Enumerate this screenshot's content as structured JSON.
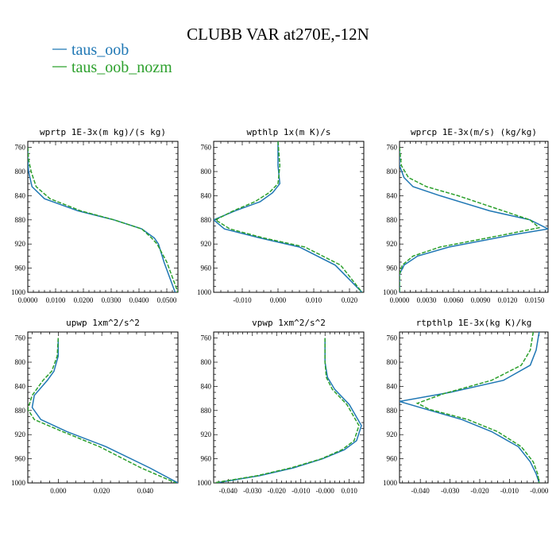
{
  "figure": {
    "title": "CLUBB VAR at270E,-12N",
    "legend": [
      {
        "label": "taus_oob",
        "color": "#1f77b4"
      },
      {
        "label": "taus_oob_nozm",
        "color": "#2ca02c"
      }
    ]
  },
  "chart_data": [
    {
      "type": "line",
      "title": "wprtp  1E-3x(m kg)/(s kg)",
      "xlim": [
        0.0,
        0.054
      ],
      "ylim": [
        1000,
        750
      ],
      "xticks": [
        0.0,
        0.01,
        0.02,
        0.03,
        0.04,
        0.05
      ],
      "xtick_labels": [
        "0.0000",
        "0.0100",
        "0.0200",
        "0.0300",
        "0.0400",
        "0.0500"
      ],
      "yticks": [
        760,
        800,
        840,
        880,
        920,
        960,
        1000
      ],
      "ytick_labels": [
        "760",
        "800",
        "840",
        "880",
        "920",
        "960",
        "1000"
      ],
      "series": [
        {
          "name": "taus_oob",
          "color": "#1f77b4",
          "dash": "solid",
          "x": [
            0.0,
            0.0,
            0.0003,
            0.0015,
            0.006,
            0.018,
            0.031,
            0.041,
            0.0455,
            0.047,
            0.049,
            0.053
          ],
          "y": [
            760,
            780,
            800,
            825,
            845,
            865,
            880,
            895,
            910,
            920,
            950,
            1000
          ]
        },
        {
          "name": "taus_oob_nozm",
          "color": "#2ca02c",
          "dash": "dashed",
          "x": [
            0.0,
            0.0003,
            0.0012,
            0.003,
            0.008,
            0.019,
            0.031,
            0.041,
            0.0445,
            0.0465,
            0.05,
            0.054
          ],
          "y": [
            760,
            780,
            800,
            825,
            845,
            865,
            880,
            895,
            910,
            920,
            950,
            1000
          ]
        }
      ]
    },
    {
      "type": "line",
      "title": "wpthlp  1x(m K)/s",
      "xlim": [
        -0.018,
        0.024
      ],
      "ylim": [
        1000,
        750
      ],
      "xticks": [
        -0.01,
        0.0,
        0.01,
        0.02
      ],
      "xtick_labels": [
        "-0.010",
        "0.000",
        "0.010",
        "0.020"
      ],
      "yticks": [
        760,
        800,
        840,
        880,
        920,
        960,
        1000
      ],
      "ytick_labels": [
        "760",
        "800",
        "840",
        "880",
        "920",
        "960",
        "1000"
      ],
      "series": [
        {
          "name": "taus_oob",
          "color": "#1f77b4",
          "dash": "solid",
          "x": [
            0.0,
            0.0,
            0.0005,
            -0.0015,
            -0.005,
            -0.012,
            -0.018,
            -0.015,
            -0.005,
            0.006,
            0.016,
            0.0235
          ],
          "y": [
            750,
            790,
            820,
            835,
            850,
            865,
            880,
            895,
            910,
            925,
            955,
            1000
          ]
        },
        {
          "name": "taus_oob_nozm",
          "color": "#2ca02c",
          "dash": "dashed",
          "x": [
            0.0,
            0.0005,
            0.0,
            -0.0025,
            -0.0065,
            -0.0125,
            -0.0175,
            -0.0135,
            -0.004,
            0.0075,
            0.0175,
            0.0235
          ],
          "y": [
            750,
            790,
            820,
            835,
            850,
            865,
            880,
            895,
            910,
            925,
            955,
            1000
          ]
        }
      ]
    },
    {
      "type": "line",
      "title": "wprcp  1E-3x(m/s) (kg/kg)",
      "xlim": [
        0.0,
        0.0165
      ],
      "ylim": [
        1000,
        750
      ],
      "xticks": [
        0.0,
        0.003,
        0.006,
        0.009,
        0.012,
        0.015
      ],
      "xtick_labels": [
        "0.0000",
        "0.0030",
        "0.0060",
        "0.0090",
        "0.0120",
        "0.0150"
      ],
      "yticks": [
        760,
        800,
        840,
        880,
        920,
        960,
        1000
      ],
      "ytick_labels": [
        "760",
        "800",
        "840",
        "880",
        "920",
        "960",
        "1000"
      ],
      "series": [
        {
          "name": "taus_oob",
          "color": "#1f77b4",
          "dash": "solid",
          "x": [
            0.0,
            0.0,
            0.0005,
            0.0015,
            0.0045,
            0.01,
            0.0145,
            0.0165,
            0.0125,
            0.0055,
            0.002,
            0.0005,
            0.0,
            0.0
          ],
          "y": [
            760,
            790,
            810,
            825,
            840,
            865,
            880,
            895,
            905,
            925,
            940,
            955,
            970,
            1000
          ]
        },
        {
          "name": "taus_oob_nozm",
          "color": "#2ca02c",
          "dash": "dashed",
          "x": [
            0.0,
            0.0002,
            0.001,
            0.003,
            0.0065,
            0.0115,
            0.0145,
            0.0155,
            0.0115,
            0.0045,
            0.0015,
            0.0003,
            0.0,
            0.0
          ],
          "y": [
            760,
            790,
            810,
            825,
            840,
            865,
            880,
            893,
            905,
            925,
            940,
            955,
            970,
            1000
          ]
        }
      ]
    },
    {
      "type": "line",
      "title": "upwp  1xm^2/s^2",
      "xlim": [
        -0.014,
        0.055
      ],
      "ylim": [
        1000,
        750
      ],
      "xticks": [
        0.0,
        0.02,
        0.04
      ],
      "xtick_labels": [
        "0.000",
        "0.020",
        "0.040"
      ],
      "yticks": [
        760,
        800,
        840,
        880,
        920,
        960,
        1000
      ],
      "ytick_labels": [
        "760",
        "800",
        "840",
        "880",
        "920",
        "960",
        "1000"
      ],
      "series": [
        {
          "name": "taus_oob",
          "color": "#1f77b4",
          "dash": "solid",
          "x": [
            0.0,
            0.0,
            -0.002,
            -0.005,
            -0.011,
            -0.012,
            -0.008,
            0.004,
            0.022,
            0.042,
            0.055
          ],
          "y": [
            760,
            790,
            815,
            830,
            855,
            875,
            895,
            915,
            940,
            975,
            1000
          ]
        },
        {
          "name": "taus_oob_nozm",
          "color": "#2ca02c",
          "dash": "dashed",
          "x": [
            0.0,
            -0.0005,
            -0.003,
            -0.007,
            -0.012,
            -0.014,
            -0.011,
            0.002,
            0.019,
            0.038,
            0.054
          ],
          "y": [
            760,
            790,
            815,
            830,
            855,
            878,
            895,
            915,
            940,
            975,
            1000
          ]
        }
      ]
    },
    {
      "type": "line",
      "title": "vpwp  1xm^2/s^2",
      "xlim": [
        -0.046,
        0.016
      ],
      "ylim": [
        1000,
        750
      ],
      "xticks": [
        -0.04,
        -0.03,
        -0.02,
        -0.01,
        0.0,
        0.01
      ],
      "xtick_labels": [
        "-0.040",
        "-0.030",
        "-0.020",
        "-0.010",
        "-0.000",
        "0.010"
      ],
      "yticks": [
        760,
        800,
        840,
        880,
        920,
        960,
        1000
      ],
      "ytick_labels": [
        "760",
        "800",
        "840",
        "880",
        "920",
        "960",
        "1000"
      ],
      "series": [
        {
          "name": "taus_oob",
          "color": "#1f77b4",
          "dash": "solid",
          "x": [
            0.0,
            0.0,
            0.001,
            0.004,
            0.01,
            0.015,
            0.013,
            0.008,
            -0.001,
            -0.013,
            -0.027,
            -0.045
          ],
          "y": [
            760,
            800,
            825,
            845,
            870,
            905,
            930,
            945,
            960,
            975,
            988,
            1000
          ]
        },
        {
          "name": "taus_oob_nozm",
          "color": "#2ca02c",
          "dash": "dashed",
          "x": [
            0.0,
            0.0,
            0.0005,
            0.003,
            0.009,
            0.014,
            0.012,
            0.007,
            -0.0015,
            -0.014,
            -0.028,
            -0.046
          ],
          "y": [
            760,
            800,
            825,
            845,
            870,
            905,
            930,
            945,
            960,
            975,
            988,
            1000
          ]
        }
      ]
    },
    {
      "type": "line",
      "title": "rtpthlp  1E-3x(kg K)/kg",
      "xlim": [
        -0.047,
        0.003
      ],
      "ylim": [
        1000,
        750
      ],
      "xticks": [
        -0.04,
        -0.03,
        -0.02,
        -0.01,
        0.0
      ],
      "xtick_labels": [
        "-0.040",
        "-0.030",
        "-0.020",
        "-0.010",
        "-0.000"
      ],
      "yticks": [
        760,
        800,
        840,
        880,
        920,
        960,
        1000
      ],
      "ytick_labels": [
        "760",
        "800",
        "840",
        "880",
        "920",
        "960",
        "1000"
      ],
      "series": [
        {
          "name": "taus_oob",
          "color": "#1f77b4",
          "dash": "solid",
          "x": [
            0.0,
            -0.001,
            -0.003,
            -0.012,
            -0.03,
            -0.047,
            -0.038,
            -0.026,
            -0.016,
            -0.007,
            -0.003,
            -0.001,
            0.0
          ],
          "y": [
            750,
            780,
            805,
            830,
            850,
            865,
            878,
            895,
            915,
            940,
            965,
            985,
            1000
          ]
        },
        {
          "name": "taus_oob_nozm",
          "color": "#2ca02c",
          "dash": "dashed",
          "x": [
            -0.002,
            -0.003,
            -0.006,
            -0.016,
            -0.032,
            -0.041,
            -0.037,
            -0.024,
            -0.014,
            -0.006,
            -0.002,
            -0.0005,
            0.0
          ],
          "y": [
            750,
            780,
            805,
            830,
            852,
            868,
            878,
            895,
            915,
            940,
            965,
            985,
            1000
          ]
        }
      ]
    }
  ]
}
